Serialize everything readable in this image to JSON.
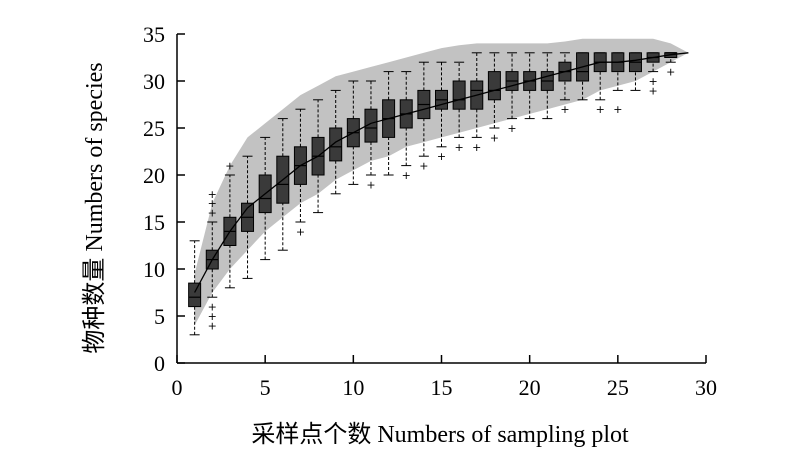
{
  "chart_data": {
    "type": "boxplot",
    "title": "",
    "xlabel": "采样点个数 Numbers of sampling plot",
    "ylabel": "物种数量 Numbers of species",
    "xlim": [
      0,
      30
    ],
    "ylim": [
      0,
      35
    ],
    "xticks": [
      0,
      5,
      10,
      15,
      20,
      25,
      30
    ],
    "yticks": [
      0,
      5,
      10,
      15,
      20,
      25,
      30,
      35
    ],
    "grid": false,
    "legend": "none",
    "colors": {
      "box": "#3a3a3a",
      "band": "#c2c2c2",
      "line": "#000000"
    },
    "accumulation_curve": {
      "x": [
        1,
        2,
        3,
        4,
        5,
        6,
        7,
        8,
        9,
        10,
        11,
        12,
        13,
        14,
        15,
        16,
        17,
        18,
        19,
        20,
        21,
        22,
        23,
        24,
        25,
        26,
        27,
        28,
        29
      ],
      "y": [
        7.5,
        11,
        14,
        16.5,
        18,
        19.5,
        21,
        22,
        23.5,
        24.5,
        25.5,
        26,
        26.5,
        27,
        27.5,
        28,
        28.5,
        29,
        29.5,
        30,
        30.5,
        31,
        31.5,
        32,
        32,
        32.2,
        32.5,
        32.8,
        33
      ]
    },
    "confidence_band": {
      "x": [
        1,
        2,
        3,
        4,
        5,
        6,
        7,
        8,
        9,
        10,
        11,
        12,
        13,
        14,
        15,
        16,
        17,
        18,
        19,
        20,
        21,
        22,
        23,
        24,
        25,
        26,
        27,
        28,
        29
      ],
      "lower": [
        4,
        7.5,
        10,
        12,
        14,
        15.5,
        17,
        18,
        19.5,
        20.5,
        21.5,
        22,
        23,
        23.5,
        24,
        24.5,
        25,
        25.5,
        26,
        26.5,
        27,
        27.5,
        28,
        29,
        29.5,
        30,
        31,
        32,
        33
      ],
      "upper": [
        9.5,
        17,
        21,
        24,
        25.5,
        27,
        28.5,
        29.5,
        30.5,
        31,
        31.5,
        32,
        32.5,
        33,
        33.5,
        33.8,
        34,
        34,
        34,
        34,
        34,
        34.2,
        34.5,
        34.5,
        34.5,
        34.5,
        34.5,
        34,
        33
      ]
    },
    "boxes": [
      {
        "x": 1,
        "whisker_low": 3,
        "q1": 6,
        "median": 7,
        "q3": 8.5,
        "whisker_high": 13,
        "outliers": []
      },
      {
        "x": 2,
        "whisker_low": 7,
        "q1": 10,
        "median": 11,
        "q3": 12,
        "whisker_high": 15,
        "outliers": [
          4,
          5,
          6,
          16,
          17,
          18
        ]
      },
      {
        "x": 3,
        "whisker_low": 8,
        "q1": 12.5,
        "median": 14,
        "q3": 15.5,
        "whisker_high": 20,
        "outliers": [
          21
        ]
      },
      {
        "x": 4,
        "whisker_low": 9,
        "q1": 14,
        "median": 15.5,
        "q3": 17,
        "whisker_high": 22,
        "outliers": []
      },
      {
        "x": 5,
        "whisker_low": 11,
        "q1": 16,
        "median": 17.5,
        "q3": 20,
        "whisker_high": 24,
        "outliers": []
      },
      {
        "x": 6,
        "whisker_low": 12,
        "q1": 17,
        "median": 19,
        "q3": 22,
        "whisker_high": 26,
        "outliers": []
      },
      {
        "x": 7,
        "whisker_low": 15,
        "q1": 19,
        "median": 21,
        "q3": 23,
        "whisker_high": 27,
        "outliers": [
          14
        ]
      },
      {
        "x": 8,
        "whisker_low": 16,
        "q1": 20,
        "median": 22,
        "q3": 24,
        "whisker_high": 28,
        "outliers": []
      },
      {
        "x": 9,
        "whisker_low": 18,
        "q1": 21.5,
        "median": 23,
        "q3": 25,
        "whisker_high": 29,
        "outliers": []
      },
      {
        "x": 10,
        "whisker_low": 19,
        "q1": 23,
        "median": 24.5,
        "q3": 26,
        "whisker_high": 30,
        "outliers": []
      },
      {
        "x": 11,
        "whisker_low": 20,
        "q1": 23.5,
        "median": 25,
        "q3": 27,
        "whisker_high": 30,
        "outliers": [
          19
        ]
      },
      {
        "x": 12,
        "whisker_low": 20,
        "q1": 24,
        "median": 26,
        "q3": 28,
        "whisker_high": 31,
        "outliers": []
      },
      {
        "x": 13,
        "whisker_low": 21,
        "q1": 25,
        "median": 26.5,
        "q3": 28,
        "whisker_high": 31,
        "outliers": [
          20
        ]
      },
      {
        "x": 14,
        "whisker_low": 22,
        "q1": 26,
        "median": 27.5,
        "q3": 29,
        "whisker_high": 32,
        "outliers": [
          21
        ]
      },
      {
        "x": 15,
        "whisker_low": 23,
        "q1": 27,
        "median": 28,
        "q3": 29,
        "whisker_high": 32,
        "outliers": [
          22
        ]
      },
      {
        "x": 16,
        "whisker_low": 24,
        "q1": 27,
        "median": 28,
        "q3": 30,
        "whisker_high": 32,
        "outliers": [
          23
        ]
      },
      {
        "x": 17,
        "whisker_low": 24,
        "q1": 27,
        "median": 29,
        "q3": 30,
        "whisker_high": 33,
        "outliers": [
          23
        ]
      },
      {
        "x": 18,
        "whisker_low": 25,
        "q1": 28,
        "median": 29,
        "q3": 31,
        "whisker_high": 33,
        "outliers": [
          24
        ]
      },
      {
        "x": 19,
        "whisker_low": 26,
        "q1": 29,
        "median": 30,
        "q3": 31,
        "whisker_high": 33,
        "outliers": [
          25
        ]
      },
      {
        "x": 20,
        "whisker_low": 26,
        "q1": 29,
        "median": 30,
        "q3": 31,
        "whisker_high": 33,
        "outliers": []
      },
      {
        "x": 21,
        "whisker_low": 26,
        "q1": 29,
        "median": 30,
        "q3": 31,
        "whisker_high": 33,
        "outliers": []
      },
      {
        "x": 22,
        "whisker_low": 28,
        "q1": 30,
        "median": 31,
        "q3": 32,
        "whisker_high": 33,
        "outliers": [
          27
        ]
      },
      {
        "x": 23,
        "whisker_low": 28,
        "q1": 30,
        "median": 31,
        "q3": 33,
        "whisker_high": 33,
        "outliers": []
      },
      {
        "x": 24,
        "whisker_low": 28,
        "q1": 31,
        "median": 32,
        "q3": 33,
        "whisker_high": 33,
        "outliers": [
          27
        ]
      },
      {
        "x": 25,
        "whisker_low": 29,
        "q1": 31,
        "median": 32,
        "q3": 33,
        "whisker_high": 33,
        "outliers": [
          27
        ]
      },
      {
        "x": 26,
        "whisker_low": 29,
        "q1": 31,
        "median": 32,
        "q3": 33,
        "whisker_high": 33,
        "outliers": []
      },
      {
        "x": 27,
        "whisker_low": 31,
        "q1": 32,
        "median": 32.5,
        "q3": 33,
        "whisker_high": 33,
        "outliers": [
          29,
          30
        ]
      },
      {
        "x": 28,
        "whisker_low": 32,
        "q1": 32.5,
        "median": 33,
        "q3": 33,
        "whisker_high": 33,
        "outliers": [
          31
        ]
      }
    ]
  }
}
